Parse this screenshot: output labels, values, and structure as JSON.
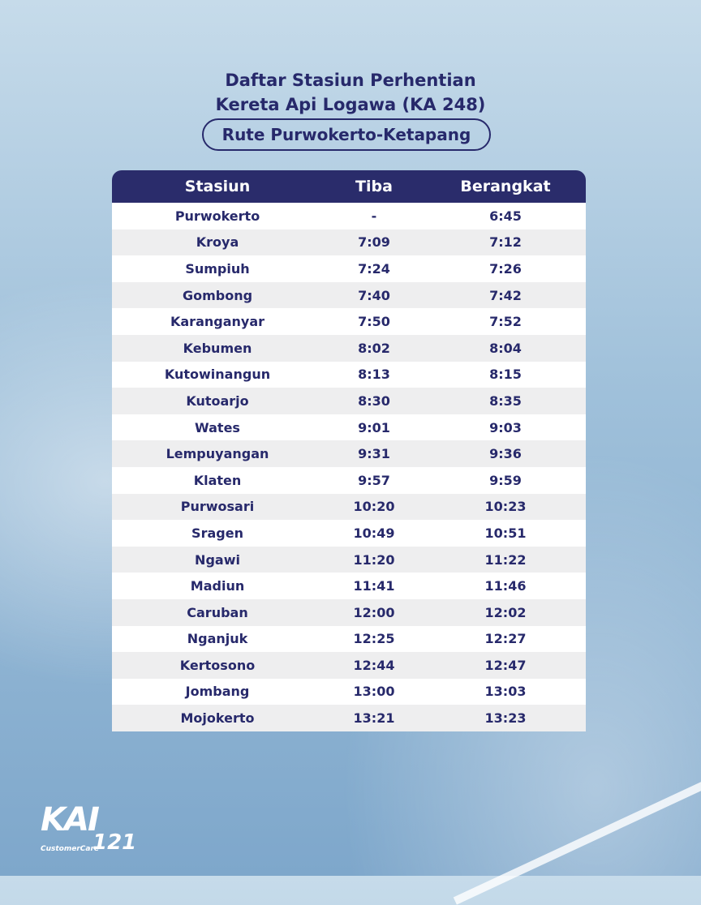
{
  "header": {
    "title_lines": [
      "Daftar Stasiun Perhentian",
      "Kereta Api Logawa (KA 248)"
    ],
    "subtitle": "Rute Purwokerto-Ketapang"
  },
  "table": {
    "columns": [
      "Stasiun",
      "Tiba",
      "Berangkat"
    ],
    "rows": [
      [
        "Purwokerto",
        "-",
        "6:45"
      ],
      [
        "Kroya",
        "7:09",
        "7:12"
      ],
      [
        "Sumpiuh",
        "7:24",
        "7:26"
      ],
      [
        "Gombong",
        "7:40",
        "7:42"
      ],
      [
        "Karanganyar",
        "7:50",
        "7:52"
      ],
      [
        "Kebumen",
        "8:02",
        "8:04"
      ],
      [
        "Kutowinangun",
        "8:13",
        "8:15"
      ],
      [
        "Kutoarjo",
        "8:30",
        "8:35"
      ],
      [
        "Wates",
        "9:01",
        "9:03"
      ],
      [
        "Lempuyangan",
        "9:31",
        "9:36"
      ],
      [
        "Klaten",
        "9:57",
        "9:59"
      ],
      [
        "Purwosari",
        "10:20",
        "10:23"
      ],
      [
        "Sragen",
        "10:49",
        "10:51"
      ],
      [
        "Ngawi",
        "11:20",
        "11:22"
      ],
      [
        "Madiun",
        "11:41",
        "11:46"
      ],
      [
        "Caruban",
        "12:00",
        "12:02"
      ],
      [
        "Nganjuk",
        "12:25",
        "12:27"
      ],
      [
        "Kertosono",
        "12:44",
        "12:47"
      ],
      [
        "Jombang",
        "13:00",
        "13:03"
      ],
      [
        "Mojokerto",
        "13:21",
        "13:23"
      ]
    ]
  },
  "logo": {
    "brand": "KAI",
    "sub": "CustomerCare",
    "number": "121"
  }
}
